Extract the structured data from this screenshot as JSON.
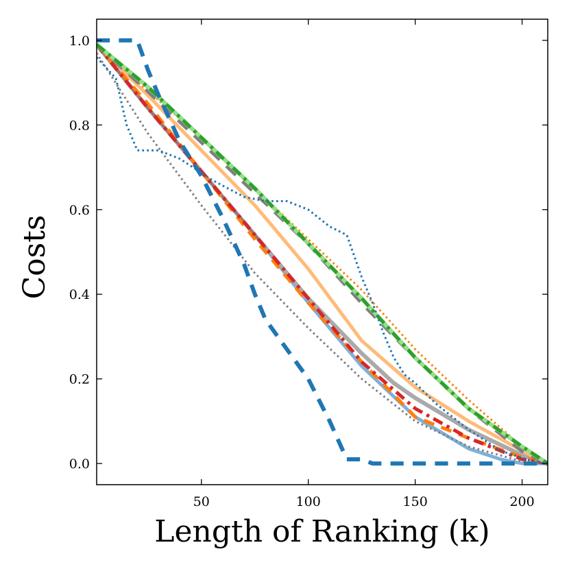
{
  "chart_data": {
    "type": "line",
    "title": "",
    "xlabel": "Length of Ranking (k)",
    "ylabel": "Costs",
    "xlim": [
      1,
      212
    ],
    "ylim": [
      -0.05,
      1.05
    ],
    "xticks": [
      50,
      100,
      150,
      200
    ],
    "yticks": [
      0.0,
      0.2,
      0.4,
      0.6,
      0.8,
      1.0
    ],
    "xtick_labels": [
      "50",
      "100",
      "150",
      "200"
    ],
    "ytick_labels": [
      "0.0",
      "0.2",
      "0.4",
      "0.6",
      "0.8",
      "1.0"
    ],
    "grid": false,
    "legend": "none",
    "series": [
      {
        "name": "light blue solid",
        "color": "#7fb0da",
        "style": "solid",
        "width": 5,
        "x": [
          1,
          25,
          50,
          75,
          100,
          125,
          150,
          175,
          190,
          200,
          212
        ],
        "y": [
          0.99,
          0.84,
          0.69,
          0.54,
          0.38,
          0.23,
          0.11,
          0.035,
          0.01,
          0.0,
          0.0
        ]
      },
      {
        "name": "grey solid",
        "color": "#aaaaaa",
        "style": "solid",
        "width": 6,
        "x": [
          1,
          25,
          50,
          75,
          100,
          125,
          140,
          150,
          175,
          200,
          212
        ],
        "y": [
          0.99,
          0.84,
          0.69,
          0.54,
          0.39,
          0.26,
          0.19,
          0.155,
          0.08,
          0.02,
          0.0
        ]
      },
      {
        "name": "brown solid",
        "color": "#9c6a6a",
        "style": "solid",
        "width": 3,
        "x": [
          1,
          25,
          50,
          70,
          80
        ],
        "y": [
          0.99,
          0.84,
          0.69,
          0.57,
          0.51
        ]
      },
      {
        "name": "orange solid",
        "color": "#ffbb78",
        "style": "solid",
        "width": 5,
        "x": [
          1,
          25,
          50,
          75,
          100,
          125,
          150,
          175,
          200,
          212
        ],
        "y": [
          0.99,
          0.87,
          0.74,
          0.61,
          0.46,
          0.29,
          0.18,
          0.1,
          0.03,
          0.0
        ]
      },
      {
        "name": "orange dashed",
        "color": "#ff7f0e",
        "style": "dashed",
        "width": 5,
        "x": [
          1,
          25,
          50,
          75,
          100,
          125,
          150,
          175,
          200,
          212
        ],
        "y": [
          0.99,
          0.85,
          0.69,
          0.53,
          0.38,
          0.24,
          0.11,
          0.06,
          0.015,
          0.0
        ]
      },
      {
        "name": "orange dotted",
        "color": "#ff7f0e",
        "style": "dotted",
        "width": 3,
        "x": [
          1,
          25,
          50,
          75,
          100,
          125,
          150,
          175,
          200,
          212
        ],
        "y": [
          0.99,
          0.88,
          0.77,
          0.65,
          0.53,
          0.41,
          0.27,
          0.15,
          0.04,
          0.0
        ]
      },
      {
        "name": "red dash-dot",
        "color": "#d62728",
        "style": "dashdot",
        "width": 5,
        "x": [
          1,
          25,
          50,
          75,
          100,
          125,
          150,
          175,
          200,
          212
        ],
        "y": [
          0.99,
          0.84,
          0.69,
          0.54,
          0.39,
          0.24,
          0.13,
          0.06,
          0.01,
          0.0
        ]
      },
      {
        "name": "grey dashed",
        "color": "#7f7f7f",
        "style": "dashed",
        "width": 6,
        "x": [
          1,
          25,
          50,
          75,
          100,
          125,
          150,
          175,
          200,
          212
        ],
        "y": [
          0.99,
          0.88,
          0.76,
          0.64,
          0.52,
          0.38,
          0.25,
          0.13,
          0.03,
          0.0
        ]
      },
      {
        "name": "grey dotted",
        "color": "#7f7f7f",
        "style": "dotted",
        "width": 3,
        "x": [
          1,
          25,
          50,
          75,
          100,
          125,
          150,
          175,
          200,
          212
        ],
        "y": [
          0.97,
          0.78,
          0.61,
          0.45,
          0.32,
          0.2,
          0.1,
          0.04,
          0.005,
          0.0
        ]
      },
      {
        "name": "light green solid",
        "color": "#98df8a",
        "style": "solid",
        "width": 6,
        "x": [
          1,
          25,
          50,
          75,
          100,
          125,
          150,
          175,
          200,
          212
        ],
        "y": [
          0.99,
          0.89,
          0.77,
          0.65,
          0.52,
          0.39,
          0.25,
          0.13,
          0.04,
          0.0
        ]
      },
      {
        "name": "green dash-dot",
        "color": "#2ca02c",
        "style": "dashdot",
        "width": 5,
        "x": [
          1,
          25,
          50,
          75,
          100,
          125,
          150,
          175,
          200,
          212
        ],
        "y": [
          0.99,
          0.89,
          0.77,
          0.65,
          0.52,
          0.39,
          0.25,
          0.13,
          0.04,
          0.0
        ]
      },
      {
        "name": "blue dotted",
        "color": "#1f77b4",
        "style": "dotted",
        "width": 3,
        "x": [
          1,
          10,
          15,
          20,
          30,
          40,
          55,
          70,
          80,
          90,
          100,
          110,
          118,
          125,
          130,
          135,
          140,
          145,
          150,
          160,
          175,
          190,
          205,
          212
        ],
        "y": [
          0.96,
          0.91,
          0.8,
          0.74,
          0.74,
          0.72,
          0.67,
          0.63,
          0.62,
          0.62,
          0.6,
          0.56,
          0.54,
          0.44,
          0.38,
          0.31,
          0.25,
          0.21,
          0.19,
          0.14,
          0.08,
          0.03,
          0.005,
          0.0
        ]
      },
      {
        "name": "blue dashed",
        "color": "#1f77b4",
        "style": "dashed",
        "width": 6,
        "x": [
          1,
          20,
          25,
          30,
          40,
          50,
          60,
          70,
          75,
          80,
          90,
          100,
          110,
          118,
          125,
          130,
          150,
          175,
          200,
          212
        ],
        "y": [
          1.0,
          1.0,
          0.93,
          0.87,
          0.76,
          0.68,
          0.58,
          0.47,
          0.4,
          0.34,
          0.27,
          0.2,
          0.1,
          0.01,
          0.01,
          0.0,
          0.0,
          0.0,
          0.0,
          0.0
        ]
      }
    ]
  }
}
